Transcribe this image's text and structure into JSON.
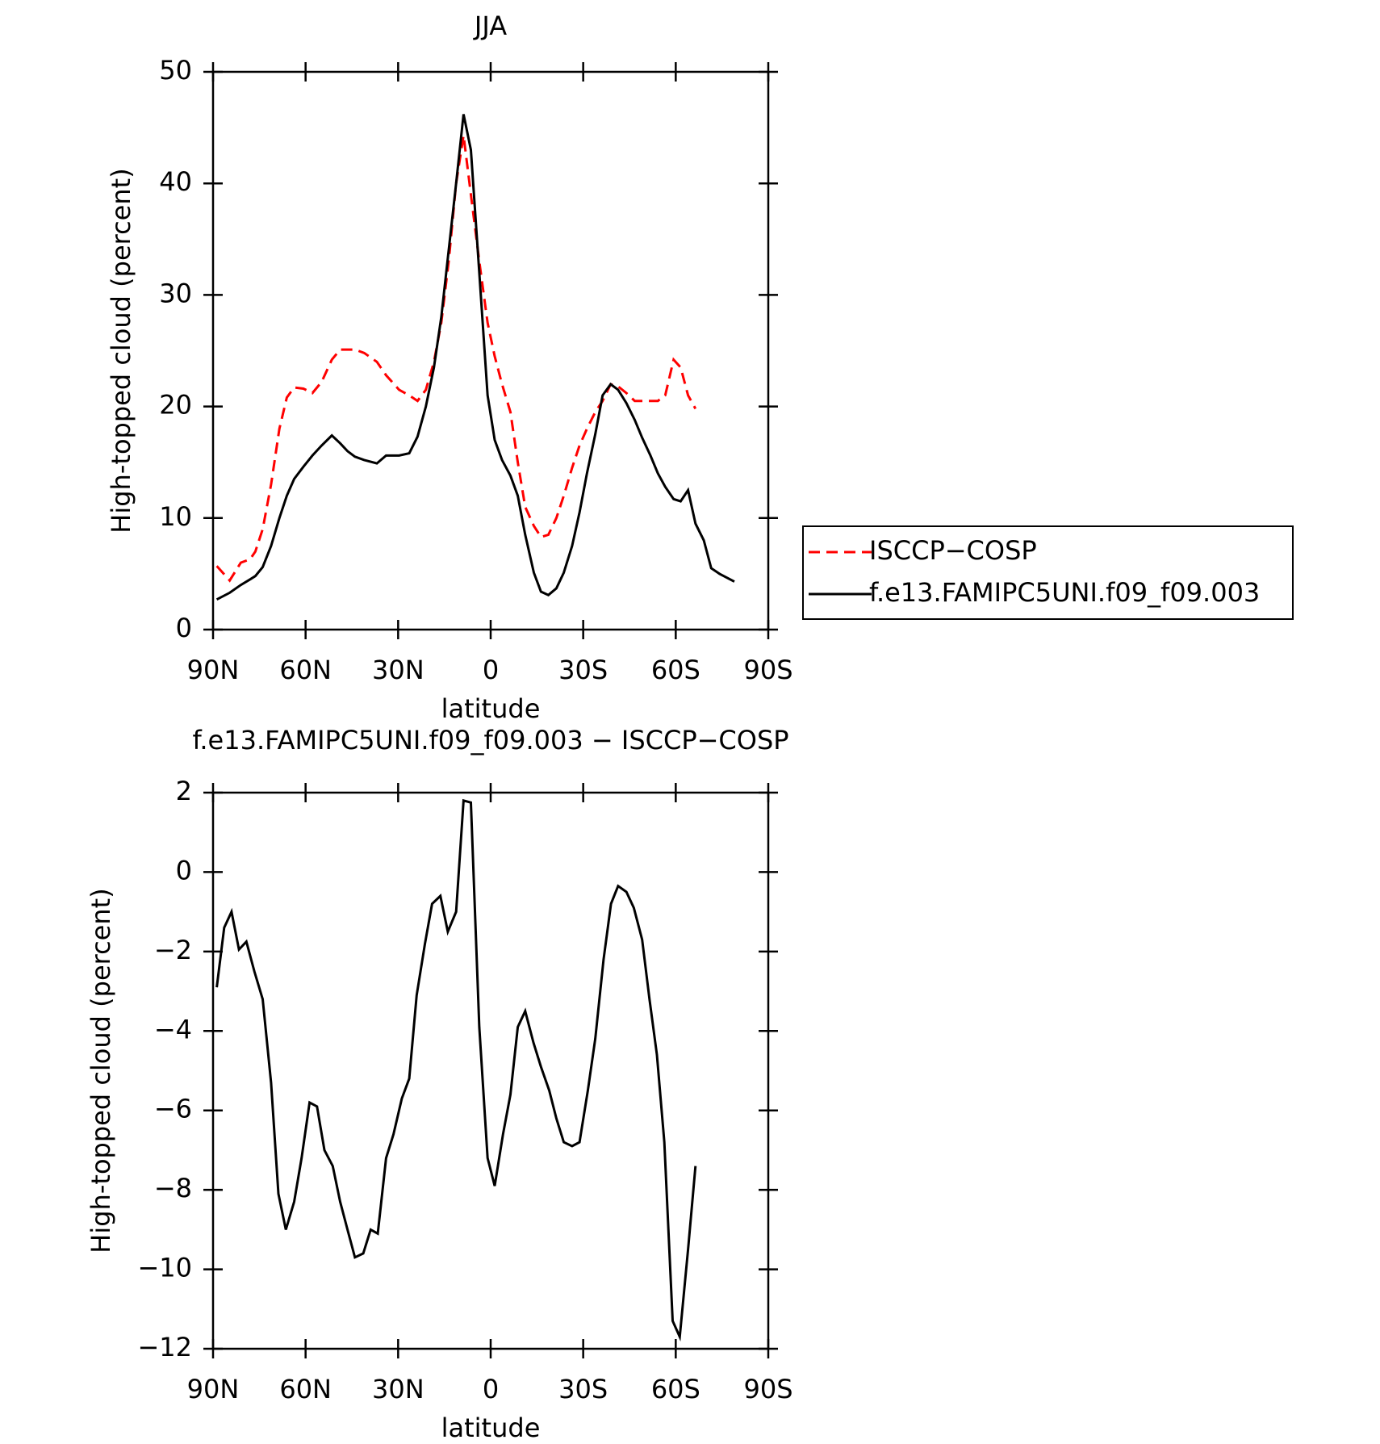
{
  "chart_data": [
    {
      "type": "line",
      "title": "JJA",
      "xlabel": "latitude",
      "ylabel": "High-topped cloud (percent)",
      "x": [
        88.8,
        84.6,
        81,
        78,
        76.3,
        73.9,
        71.2,
        68.5,
        66.1,
        63.7,
        60.7,
        57.8,
        54.8,
        51.5,
        48.8,
        46.4,
        44,
        41,
        36.9,
        33.9,
        29.7,
        26.4,
        23.7,
        21,
        18.4,
        16,
        13.6,
        11.2,
        8.8,
        6.4,
        3.7,
        1,
        -1.3,
        -3.7,
        -6.4,
        -8.8,
        -11.2,
        -14,
        -16.3,
        -18.7,
        -21.3,
        -23.7,
        -26.4,
        -28.8,
        -31.2,
        -33.9,
        -36.3,
        -38.9,
        -41.3,
        -44,
        -46.7,
        -49.1,
        -51.8,
        -54.2,
        -56.6,
        -59.3,
        -61.6,
        -64,
        -66.4,
        -69.1,
        -71.5,
        -74.2,
        -79
      ],
      "series": [
        {
          "name": "ISCCP−COSP",
          "color": "#ff0000",
          "linestyle": "dashed",
          "values": [
            5.7,
            4.4,
            6,
            6.3,
            7,
            9,
            13,
            18,
            20.8,
            21.7,
            21.6,
            21.2,
            22.2,
            24.2,
            25.1,
            25.1,
            25.1,
            24.8,
            24,
            22.8,
            21.5,
            21,
            20.5,
            21.5,
            24,
            27.5,
            33,
            40,
            44.3,
            39,
            33,
            27.5,
            24.5,
            22,
            19.5,
            15,
            11,
            9.3,
            8.3,
            8.5,
            10,
            12,
            14.5,
            16.5,
            18,
            19.5,
            20.5,
            22,
            21.8,
            21.2,
            20.5,
            20.5,
            20.5,
            20.5,
            21,
            24.2,
            23.5,
            21,
            19.8,
            null,
            null,
            null,
            null
          ]
        },
        {
          "name": "f.e13.FAMIPC5UNI.f09_f09.003",
          "color": "#000000",
          "linestyle": "solid",
          "values": [
            2.7,
            3.3,
            4.0,
            4.5,
            4.8,
            5.6,
            7.5,
            10,
            12,
            13.5,
            14.6,
            15.6,
            16.5,
            17.4,
            16.7,
            16,
            15.5,
            15.2,
            14.9,
            15.6,
            15.6,
            15.8,
            17.3,
            20,
            23.5,
            28,
            34,
            40,
            46.2,
            43,
            32,
            21,
            17,
            15.2,
            13.8,
            12,
            8.5,
            5.1,
            3.4,
            3.1,
            3.7,
            5.1,
            7.5,
            10.5,
            14,
            17.5,
            21,
            22,
            21.5,
            20.3,
            18.8,
            17.2,
            15.6,
            14,
            12.8,
            11.7,
            11.5,
            12.5,
            9.5,
            8,
            5.5,
            5,
            4.3
          ]
        }
      ],
      "xlim": [
        90,
        -90
      ],
      "xticks": [
        {
          "value": 90,
          "label": "90N"
        },
        {
          "value": 60,
          "label": "60N"
        },
        {
          "value": 30,
          "label": "30N"
        },
        0,
        {
          "value": -30,
          "label": "30S"
        },
        {
          "value": -60,
          "label": "60S"
        },
        {
          "value": -90,
          "label": "90S"
        }
      ],
      "ylim": [
        0,
        50
      ],
      "yticks": [
        0,
        10,
        20,
        30,
        40,
        50
      ],
      "legend": "right"
    },
    {
      "type": "line",
      "title": "f.e13.FAMIPC5UNI.f09_f09.003 − ISCCP−COSP",
      "xlabel": "latitude",
      "ylabel": "High-topped cloud (percent)",
      "x": [
        88.8,
        86.4,
        84,
        81.6,
        79.2,
        76.6,
        73.9,
        71.2,
        68.8,
        66.4,
        63.7,
        61.3,
        58.7,
        56.3,
        53.9,
        51.2,
        48.8,
        46.4,
        44,
        41.3,
        38.9,
        36.6,
        33.9,
        31.5,
        28.8,
        26.4,
        24,
        21.3,
        19,
        16.3,
        13.9,
        11.2,
        8.8,
        6.4,
        3.7,
        1,
        -1.3,
        -4,
        -6.4,
        -8.8,
        -11.2,
        -13.9,
        -16.3,
        -19,
        -21.3,
        -23.7,
        -26.4,
        -28.8,
        -31.5,
        -33.9,
        -36.6,
        -39,
        -41.3,
        -44,
        -46.4,
        -49.1,
        -51.5,
        -53.9,
        -56.3,
        -59,
        -61.3,
        -64,
        -66.4
      ],
      "series": [
        {
          "color": "#000000",
          "linestyle": "solid",
          "values": [
            -2.9,
            -1.4,
            -1,
            -1.95,
            -1.75,
            -2.5,
            -3.2,
            -5.3,
            -8.1,
            -9,
            -8.3,
            -7.2,
            -5.8,
            -5.9,
            -7,
            -7.4,
            -8.3,
            -9,
            -9.7,
            -9.6,
            -9,
            -9.1,
            -7.2,
            -6.6,
            -5.7,
            -5.2,
            -3.1,
            -1.8,
            -0.8,
            -0.6,
            -1.5,
            -1,
            1.8,
            1.75,
            -3.9,
            -7.2,
            -7.9,
            -6.6,
            -5.6,
            -3.9,
            -3.5,
            -4.3,
            -4.9,
            -5.5,
            -6.2,
            -6.8,
            -6.9,
            -6.8,
            -5.5,
            -4.2,
            -2.2,
            -0.8,
            -0.35,
            -0.5,
            -0.9,
            -1.7,
            -3.2,
            -4.6,
            -6.8,
            -11.3,
            -11.7,
            -9.5,
            -7.4
          ]
        }
      ],
      "xlim": [
        90,
        -90
      ],
      "xticks": [
        {
          "value": 90,
          "label": "90N"
        },
        {
          "value": 60,
          "label": "60N"
        },
        {
          "value": 30,
          "label": "30N"
        },
        0,
        {
          "value": -30,
          "label": "30S"
        },
        {
          "value": -60,
          "label": "60S"
        },
        {
          "value": -90,
          "label": "90S"
        }
      ],
      "ylim": [
        -12,
        2
      ],
      "yticks": [
        {
          "value": -12,
          "label": "−12"
        },
        {
          "value": -10,
          "label": "−10"
        },
        {
          "value": -8,
          "label": "−8"
        },
        {
          "value": -6,
          "label": "−6"
        },
        {
          "value": -4,
          "label": "−4"
        },
        {
          "value": -2,
          "label": "−2"
        },
        0,
        2
      ]
    }
  ]
}
